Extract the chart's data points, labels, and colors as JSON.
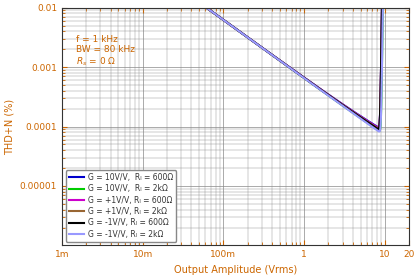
{
  "title": "",
  "xlabel": "Output Amplitude (Vrms)",
  "ylabel": "THD+N (%)",
  "annotation": "f = 1 kHz\nBW = 80 kHz\nR_s = 0 Ω",
  "xlim": [
    0.001,
    20
  ],
  "ylim": [
    1e-06,
    0.01
  ],
  "legend": [
    {
      "label": "G = 10V/V,  Rₗ = 600Ω",
      "color": "#0000cc",
      "lw": 1.5
    },
    {
      "label": "G = 10V/V,  Rₗ = 2kΩ",
      "color": "#00cc00",
      "lw": 1.5
    },
    {
      "label": "G = +1V/V, Rₗ = 600Ω",
      "color": "#cc00cc",
      "lw": 1.5
    },
    {
      "label": "G = +1V/V, Rₗ = 2kΩ",
      "color": "#996633",
      "lw": 1.5
    },
    {
      "label": "G = -1V/V, Rₗ = 600Ω",
      "color": "#000000",
      "lw": 1.5
    },
    {
      "label": "G = -1V/V, Rₗ = 2kΩ",
      "color": "#9999ff",
      "lw": 1.5
    }
  ],
  "axis_color": "#cc6600",
  "grid_color": "#888888",
  "bg_color": "#ffffff"
}
